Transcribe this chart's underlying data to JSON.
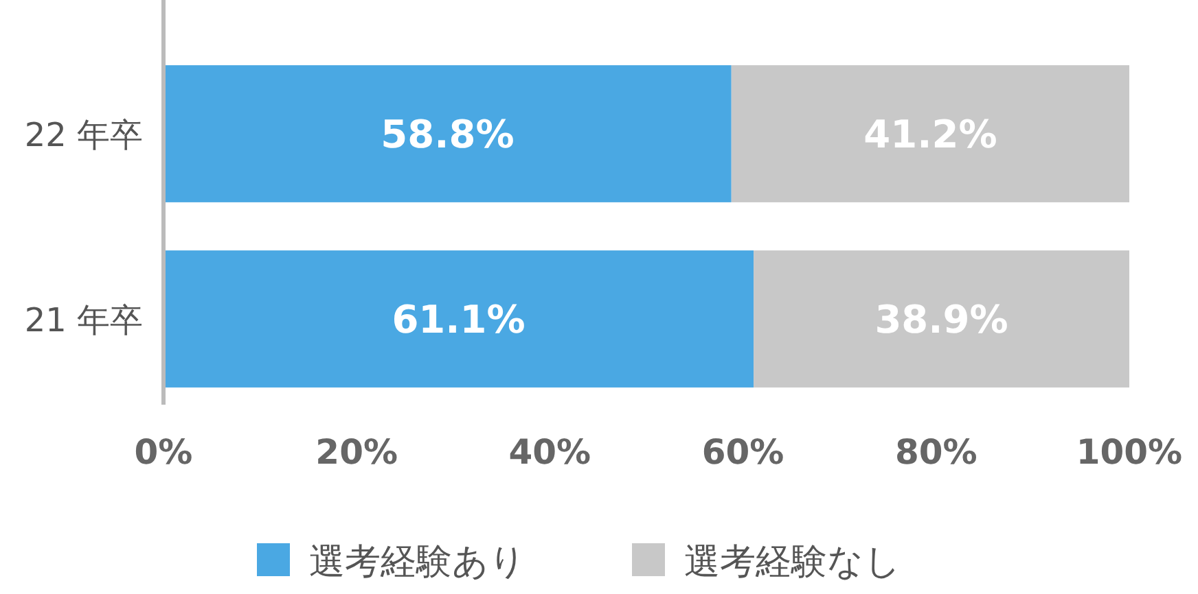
{
  "chart_data": {
    "type": "bar",
    "orientation": "horizontal",
    "stacked": true,
    "categories": [
      "22 年卒",
      "21 年卒"
    ],
    "series": [
      {
        "name": "選考経験あり",
        "color": "#4aa8e3",
        "values": [
          58.8,
          61.1
        ],
        "value_labels": [
          "58.8%",
          "61.1%"
        ]
      },
      {
        "name": "選考経験なし",
        "color": "#c8c8c8",
        "values": [
          41.2,
          38.9
        ],
        "value_labels": [
          "41.2%",
          "38.9%"
        ]
      }
    ],
    "xlim": [
      0,
      100
    ],
    "xticks": [
      {
        "value": 0,
        "label": "0%"
      },
      {
        "value": 20,
        "label": "20%"
      },
      {
        "value": 40,
        "label": "40%"
      },
      {
        "value": 60,
        "label": "60%"
      },
      {
        "value": 80,
        "label": "80%"
      },
      {
        "value": 100,
        "label": "100%"
      }
    ],
    "legend": "bottom"
  }
}
